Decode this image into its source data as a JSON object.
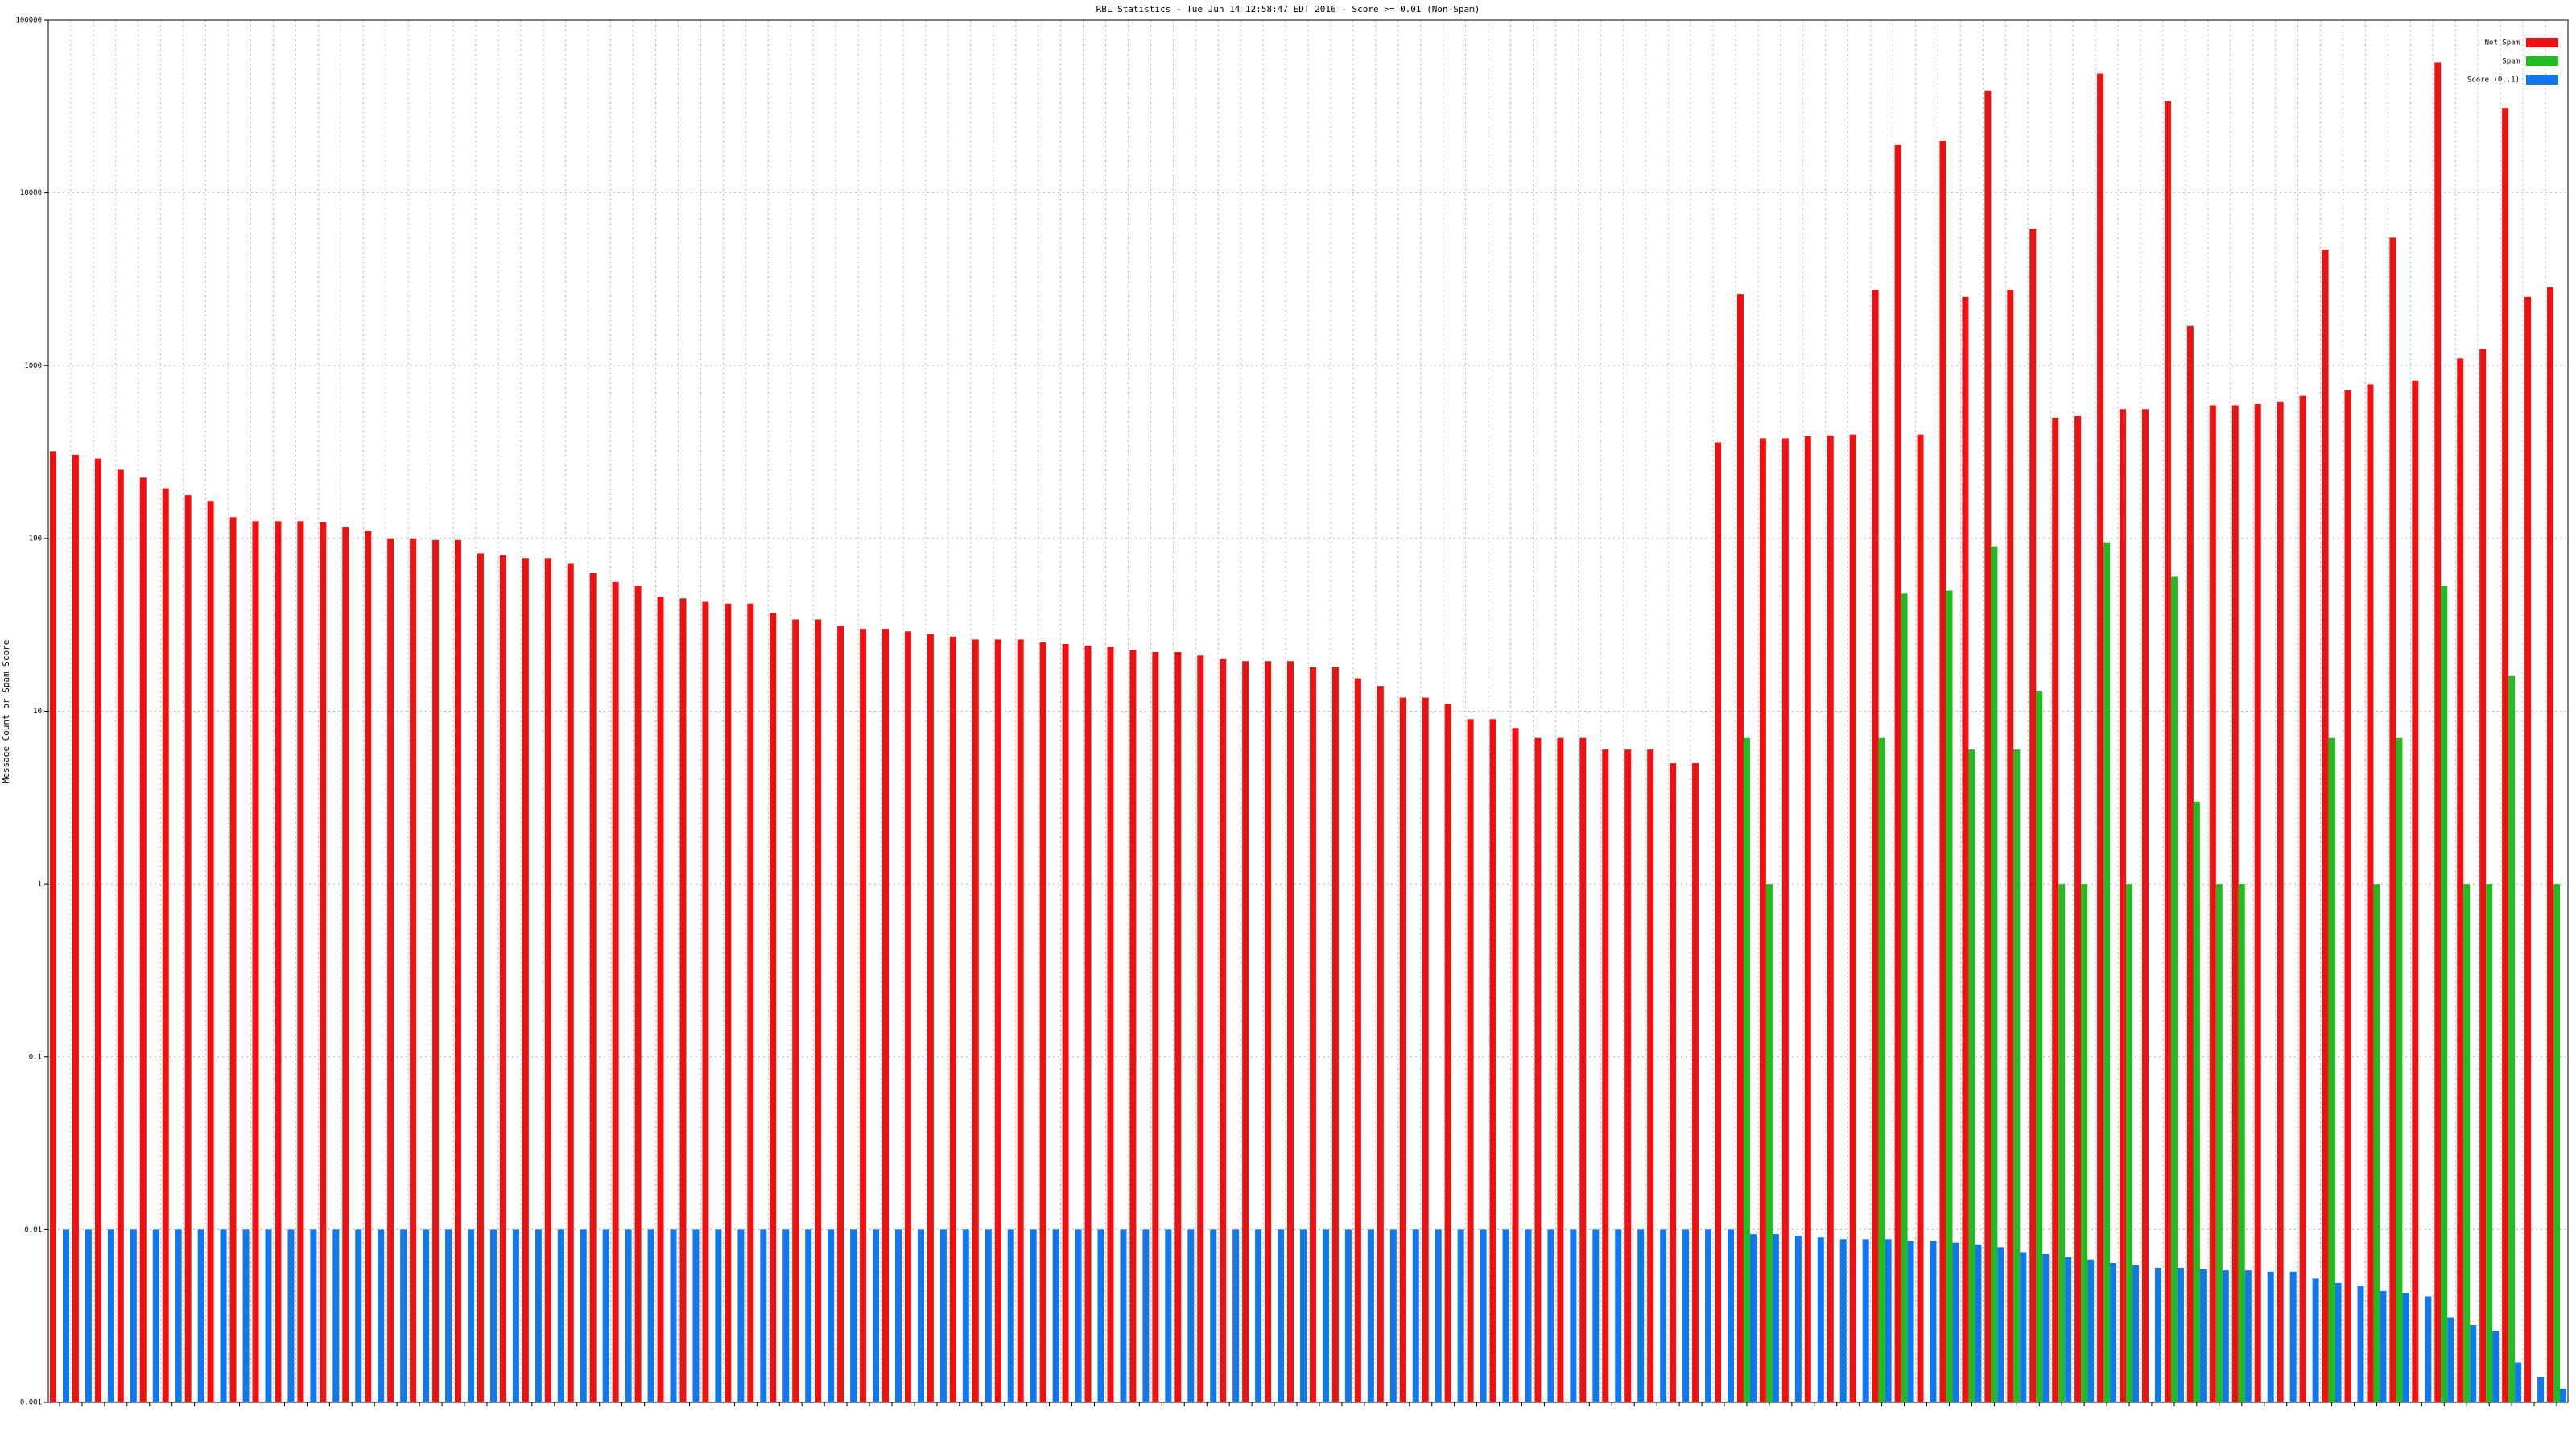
{
  "chart_data": {
    "type": "bar",
    "title": "RBL Statistics - Tue Jun 14 12:58:47 EDT 2016 - Score >= 0.01 (Non-Spam)",
    "y_label": "Message Count or Spam Score",
    "yscale": "log",
    "grid": true,
    "legend": "top-right",
    "ylim": [
      0.001,
      100000
    ],
    "yticks": [
      0.001,
      0.01,
      0.1,
      1,
      10,
      100,
      1000,
      10000,
      100000
    ],
    "categories": [
      null,
      null,
      null,
      null,
      null,
      null,
      null,
      null,
      null,
      null,
      null,
      null,
      null,
      null,
      null,
      null,
      null,
      null,
      null,
      null,
      null,
      null,
      null,
      null,
      null,
      null,
      null,
      null,
      null,
      null,
      null,
      null,
      null,
      null,
      null,
      null,
      null,
      null,
      null,
      null,
      null,
      null,
      null,
      null,
      null,
      null,
      null,
      null,
      null,
      null,
      null,
      null,
      null,
      null,
      null,
      null,
      null,
      null,
      null,
      null,
      null,
      null,
      null,
      null,
      null,
      null,
      null,
      null,
      null,
      null,
      null,
      null,
      null,
      null,
      null,
      null,
      null,
      null,
      null,
      null,
      null,
      null,
      null,
      null,
      null,
      null,
      null,
      null,
      null,
      null,
      null,
      null,
      null,
      null,
      null,
      null,
      null,
      null,
      null,
      null,
      null,
      null,
      null,
      null,
      null,
      null,
      null,
      null,
      null,
      null,
      null,
      null
    ],
    "series": [
      {
        "name": "Not Spam",
        "color": "#ee1111",
        "values": [
          320,
          305,
          290,
          250,
          225,
          195,
          178,
          165,
          133,
          126,
          126,
          126,
          124,
          116,
          110,
          100,
          100,
          98,
          98,
          82,
          80,
          77,
          77,
          72,
          63,
          56,
          53,
          46,
          45,
          43,
          42,
          42,
          37,
          34,
          34,
          31,
          30,
          30,
          29,
          28,
          27,
          26,
          26,
          26,
          25,
          24.5,
          24,
          23.5,
          22.5,
          22,
          22,
          21,
          20,
          19.5,
          19.5,
          19.5,
          18,
          18,
          15.5,
          14,
          12,
          12,
          11,
          9,
          9,
          8,
          7,
          7,
          7,
          6,
          6,
          6,
          5,
          5,
          360,
          2600,
          380,
          380,
          390,
          395,
          400,
          2750,
          19000,
          400,
          20000,
          2500,
          39000,
          2750,
          6200,
          500,
          510,
          49000,
          560,
          560,
          34000,
          1700,
          590,
          590,
          600,
          620,
          670,
          4700,
          720,
          780,
          5500,
          820,
          57000,
          1100,
          1250,
          31000,
          2500,
          2850
        ]
      },
      {
        "name": "Spam",
        "color": "#22bb22",
        "values": [
          null,
          null,
          null,
          null,
          null,
          null,
          null,
          null,
          null,
          null,
          null,
          null,
          null,
          null,
          null,
          null,
          null,
          null,
          null,
          null,
          null,
          null,
          null,
          null,
          null,
          null,
          null,
          null,
          null,
          null,
          null,
          null,
          null,
          null,
          null,
          null,
          null,
          null,
          null,
          null,
          null,
          null,
          null,
          null,
          null,
          null,
          null,
          null,
          null,
          null,
          null,
          null,
          null,
          null,
          null,
          null,
          null,
          null,
          null,
          null,
          null,
          null,
          null,
          null,
          null,
          null,
          null,
          null,
          null,
          null,
          null,
          null,
          null,
          null,
          null,
          7,
          1,
          null,
          null,
          null,
          null,
          7,
          48,
          null,
          50,
          6,
          90,
          6,
          13,
          1,
          1,
          95,
          1,
          null,
          60,
          3,
          1,
          1,
          null,
          null,
          null,
          7,
          null,
          1,
          7,
          null,
          53,
          1,
          1,
          16,
          null,
          1
        ]
      },
      {
        "name": "Score (0..1)",
        "color": "#1177ee",
        "values": [
          0.01,
          0.01,
          0.01,
          0.01,
          0.01,
          0.01,
          0.01,
          0.01,
          0.01,
          0.01,
          0.01,
          0.01,
          0.01,
          0.01,
          0.01,
          0.01,
          0.01,
          0.01,
          0.01,
          0.01,
          0.01,
          0.01,
          0.01,
          0.01,
          0.01,
          0.01,
          0.01,
          0.01,
          0.01,
          0.01,
          0.01,
          0.01,
          0.01,
          0.01,
          0.01,
          0.01,
          0.01,
          0.01,
          0.01,
          0.01,
          0.01,
          0.01,
          0.01,
          0.01,
          0.01,
          0.01,
          0.01,
          0.01,
          0.01,
          0.01,
          0.01,
          0.01,
          0.01,
          0.01,
          0.01,
          0.01,
          0.01,
          0.01,
          0.01,
          0.01,
          0.01,
          0.01,
          0.01,
          0.01,
          0.01,
          0.01,
          0.01,
          0.01,
          0.01,
          0.01,
          0.01,
          0.01,
          0.01,
          0.01,
          0.01,
          0.0094,
          0.0094,
          0.0092,
          0.009,
          0.0088,
          0.0088,
          0.0088,
          0.0086,
          0.0086,
          0.0084,
          0.0082,
          0.0079,
          0.0074,
          0.0072,
          0.0069,
          0.0067,
          0.0064,
          0.0062,
          0.006,
          0.006,
          0.0059,
          0.0058,
          0.0058,
          0.0057,
          0.0057,
          0.0052,
          0.0049,
          0.0047,
          0.0044,
          0.0043,
          0.0041,
          0.0031,
          0.0028,
          0.0026,
          0.0017,
          0.0014,
          0.0012
        ]
      }
    ]
  }
}
